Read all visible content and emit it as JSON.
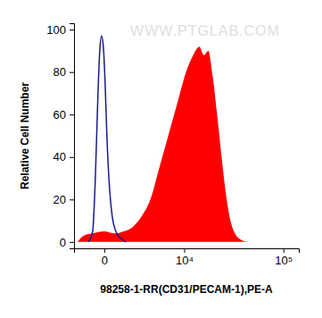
{
  "chart_data": {
    "type": "area",
    "x_label": "98258-1-RR(CD31/PECAM-1),PE-A",
    "y_label": "Relative Cell Number",
    "annotations": [
      "WWW.PTGLAB.COM"
    ],
    "log": "x",
    "grid": false,
    "xlim": [
      -2000,
      140000
    ],
    "xticks": [
      0,
      {
        "value": 10000,
        "label": "10⁴"
      },
      {
        "value": 100000,
        "label": "10⁵"
      }
    ],
    "ylim": [
      -3,
      103
    ],
    "yticks": [
      0,
      20,
      40,
      60,
      80,
      100
    ],
    "series": [
      {
        "type": "line",
        "color": "#1a1a8c",
        "x": [
          -900,
          -619,
          -461,
          -314,
          -220,
          -129,
          -42,
          42,
          129,
          267,
          411,
          619,
          900,
          1274
        ],
        "values": [
          0,
          5,
          30,
          70,
          90,
          97,
          92,
          75,
          50,
          25,
          12,
          5,
          2,
          0
        ]
      },
      {
        "type": "area",
        "color": "#ff0000",
        "x": [
          -1694,
          -1210,
          -619,
          0,
          566,
          1145,
          1848,
          2697,
          3717,
          4968,
          6472,
          8290,
          10490,
          12580,
          14690,
          16380,
          18240,
          20280,
          22510,
          24990,
          27720,
          30690,
          33980,
          39120,
          45980
        ],
        "values": [
          0,
          3,
          4,
          5,
          4,
          5,
          7,
          12,
          20,
          35,
          50,
          65,
          80,
          88,
          92,
          88,
          90,
          78,
          60,
          40,
          22,
          10,
          4,
          1,
          0
        ]
      }
    ]
  }
}
